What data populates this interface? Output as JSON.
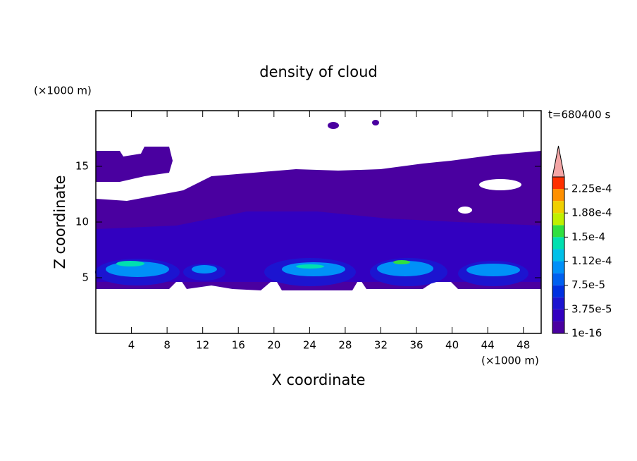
{
  "chart_data": {
    "type": "contour",
    "title": "density of cloud",
    "x_label": "X coordinate",
    "y_label": "Z coordinate",
    "x_unit": "(×1000 m)",
    "y_unit": "(×1000 m)",
    "time_label": "t=680400 s",
    "xlim": [
      0,
      50
    ],
    "xticks": [
      4,
      8,
      12,
      16,
      20,
      24,
      28,
      32,
      36,
      40,
      44,
      48
    ],
    "ylim": [
      0,
      20
    ],
    "yticks": [
      5,
      10,
      15
    ],
    "colorbar": {
      "levels": [
        1e-16,
        1.875e-05,
        3.75e-05,
        5.625e-05,
        7.5e-05,
        9.375e-05,
        0.0001125,
        0.00013125,
        0.00015,
        0.00016875,
        0.0001875,
        0.00020625,
        0.000225,
        0.00024375
      ],
      "colors": [
        "#4a00a0",
        "#3200c0",
        "#1c14d0",
        "#0030e0",
        "#0060f0",
        "#0090f8",
        "#00c0e8",
        "#00e0b0",
        "#30e040",
        "#c0f000",
        "#f0d000",
        "#ff9000",
        "#ff3000"
      ],
      "over_color": "#f4a6a6",
      "ticks": [
        {
          "value": 1e-16,
          "label": "1e-16"
        },
        {
          "value": 3.75e-05,
          "label": "3.75e-5"
        },
        {
          "value": 7.5e-05,
          "label": "7.5e-5"
        },
        {
          "value": 0.0001125,
          "label": "1.12e-4"
        },
        {
          "value": 0.00015,
          "label": "1.5e-4"
        },
        {
          "value": 0.0001875,
          "label": "1.88e-4"
        },
        {
          "value": 0.000225,
          "label": "2.25e-4"
        }
      ]
    }
  }
}
